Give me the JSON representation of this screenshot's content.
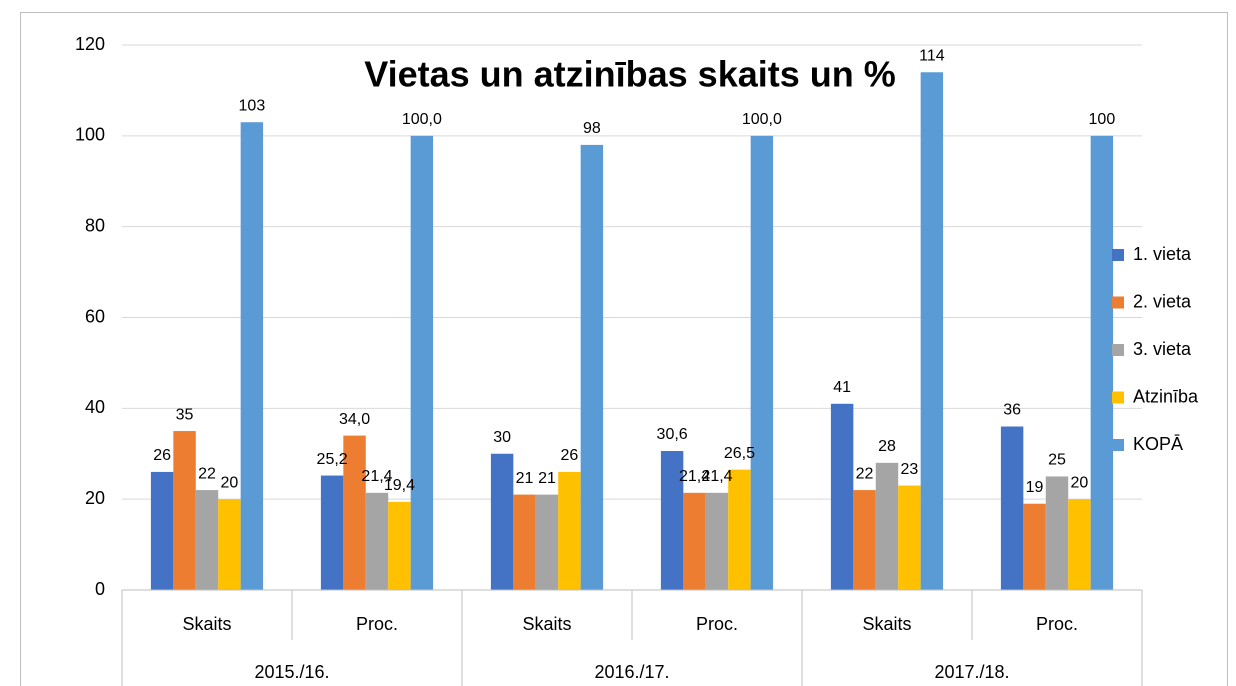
{
  "chart_data": {
    "type": "bar",
    "title": "Vietas un atzinības skaits un %",
    "categories": [
      "Skaits",
      "Proc.",
      "Skaits",
      "Proc.",
      "Skaits",
      "Proc."
    ],
    "category_groups": [
      "2015./16.",
      "2016./17.",
      "2017./18."
    ],
    "series": [
      {
        "name": "1. vieta",
        "color": "#4472c4",
        "values": [
          26,
          25.2,
          30,
          30.6,
          41,
          36
        ],
        "value_labels": [
          "26",
          "25,2",
          "30",
          "30,6",
          "41",
          "36"
        ]
      },
      {
        "name": "2. vieta",
        "color": "#ed7d31",
        "values": [
          35,
          34,
          21,
          21.4,
          22,
          19
        ],
        "value_labels": [
          "35",
          "34,0",
          "21",
          "21,4",
          "22",
          "19"
        ]
      },
      {
        "name": "3. vieta",
        "color": "#a5a5a5",
        "values": [
          22,
          21.4,
          21,
          21.4,
          28,
          25
        ],
        "value_labels": [
          "22",
          "21,4",
          "21",
          "21,4",
          "28",
          "25"
        ]
      },
      {
        "name": "Atzinība",
        "color": "#ffc000",
        "values": [
          20,
          19.4,
          26,
          26.5,
          23,
          20
        ],
        "value_labels": [
          "20",
          "19,4",
          "26",
          "26,5",
          "23",
          "20"
        ]
      },
      {
        "name": "KOPĀ",
        "color": "#5b9bd5",
        "values": [
          103,
          100,
          98,
          100,
          114,
          100
        ],
        "value_labels": [
          "103",
          "100,0",
          "98",
          "100,0",
          "114",
          "100"
        ]
      }
    ],
    "ylim": [
      0,
      120
    ],
    "yticks": [
      0,
      20,
      40,
      60,
      80,
      100,
      120
    ],
    "grid": true,
    "legend": "right"
  }
}
